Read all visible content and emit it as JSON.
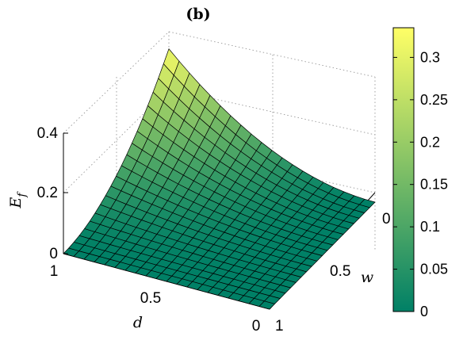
{
  "chart_data": {
    "type": "surface",
    "title": "(b)",
    "xlabel": "d",
    "ylabel": "w",
    "zlabel": "E",
    "zlabel_subscript": "f",
    "x": {
      "range": [
        0,
        1
      ],
      "ticks": [
        "0",
        "0.5",
        "1"
      ]
    },
    "y": {
      "range": [
        0,
        1
      ],
      "ticks": [
        "0",
        "0.5",
        "1"
      ]
    },
    "z": {
      "range": [
        0,
        0.4
      ],
      "ticks": [
        "0",
        "0.2",
        "0.4"
      ]
    },
    "grid": true,
    "colormap": "summer",
    "colormap_stops": [
      "#008066",
      "#FFFF66"
    ],
    "mesh_divisions": 20,
    "function": "E_f(d,w) = 0.33 * (1 - d)^2 * (1 - w)^2",
    "corner_values": [
      {
        "d": 0,
        "w": 0,
        "E_f": 0.33
      },
      {
        "d": 1,
        "w": 0,
        "E_f": 0
      },
      {
        "d": 0,
        "w": 1,
        "E_f": 0
      },
      {
        "d": 1,
        "w": 1,
        "E_f": 0
      }
    ],
    "colorbar": {
      "range": [
        0,
        0.335
      ],
      "ticks": [
        "0",
        "0.05",
        "0.1",
        "0.15",
        "0.2",
        "0.25",
        "0.3"
      ],
      "location": "right"
    }
  }
}
